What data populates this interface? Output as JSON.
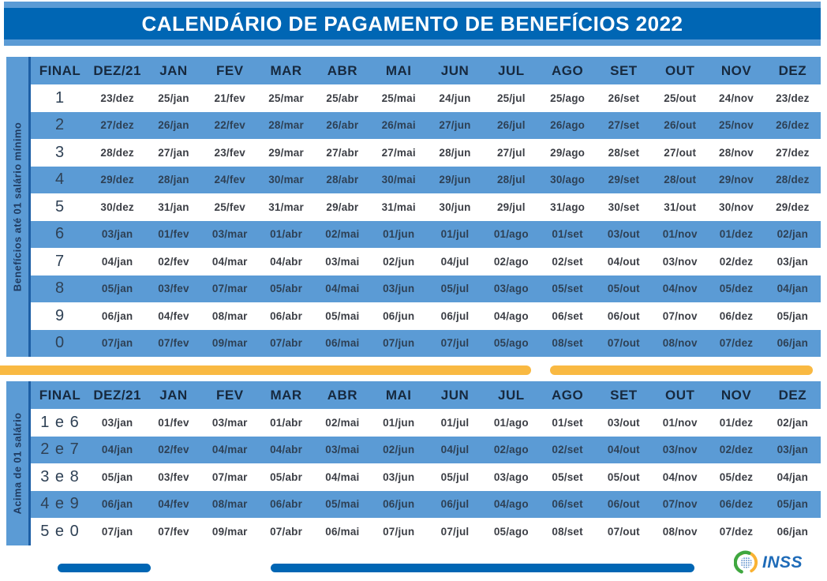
{
  "title": "CALENDÁRIO DE PAGAMENTO DE BENEFÍCIOS 2022",
  "colors": {
    "dark_blue": "#0066B4",
    "light_blue": "#5B9BD5",
    "yellow": "#F9B942",
    "header_text": "#17293E",
    "logo_blue": "#1E6BB8",
    "logo_green": "#3FA73F",
    "logo_yellow": "#F9B233"
  },
  "table1": {
    "side_label": "Benefícios até 01 salário mínimo",
    "columns": [
      "FINAL",
      "DEZ/21",
      "JAN",
      "FEV",
      "MAR",
      "ABR",
      "MAI",
      "JUN",
      "JUL",
      "AGO",
      "SET",
      "OUT",
      "NOV",
      "DEZ"
    ],
    "rows": [
      {
        "final": "1",
        "dates": [
          "23/dez",
          "25/jan",
          "21/fev",
          "25/mar",
          "25/abr",
          "25/mai",
          "24/jun",
          "25/jul",
          "25/ago",
          "26/set",
          "25/out",
          "24/nov",
          "23/dez"
        ]
      },
      {
        "final": "2",
        "dates": [
          "27/dez",
          "26/jan",
          "22/fev",
          "28/mar",
          "26/abr",
          "26/mai",
          "27/jun",
          "26/jul",
          "26/ago",
          "27/set",
          "26/out",
          "25/nov",
          "26/dez"
        ]
      },
      {
        "final": "3",
        "dates": [
          "28/dez",
          "27/jan",
          "23/fev",
          "29/mar",
          "27/abr",
          "27/mai",
          "28/jun",
          "27/jul",
          "29/ago",
          "28/set",
          "27/out",
          "28/nov",
          "27/dez"
        ]
      },
      {
        "final": "4",
        "dates": [
          "29/dez",
          "28/jan",
          "24/fev",
          "30/mar",
          "28/abr",
          "30/mai",
          "29/jun",
          "28/jul",
          "30/ago",
          "29/set",
          "28/out",
          "29/nov",
          "28/dez"
        ]
      },
      {
        "final": "5",
        "dates": [
          "30/dez",
          "31/jan",
          "25/fev",
          "31/mar",
          "29/abr",
          "31/mai",
          "30/jun",
          "29/jul",
          "31/ago",
          "30/set",
          "31/out",
          "30/nov",
          "29/dez"
        ]
      },
      {
        "final": "6",
        "dates": [
          "03/jan",
          "01/fev",
          "03/mar",
          "01/abr",
          "02/mai",
          "01/jun",
          "01/jul",
          "01/ago",
          "01/set",
          "03/out",
          "01/nov",
          "01/dez",
          "02/jan"
        ]
      },
      {
        "final": "7",
        "dates": [
          "04/jan",
          "02/fev",
          "04/mar",
          "04/abr",
          "03/mai",
          "02/jun",
          "04/jul",
          "02/ago",
          "02/set",
          "04/out",
          "03/nov",
          "02/dez",
          "03/jan"
        ]
      },
      {
        "final": "8",
        "dates": [
          "05/jan",
          "03/fev",
          "07/mar",
          "05/abr",
          "04/mai",
          "03/jun",
          "05/jul",
          "03/ago",
          "05/set",
          "05/out",
          "04/nov",
          "05/dez",
          "04/jan"
        ]
      },
      {
        "final": "9",
        "dates": [
          "06/jan",
          "04/fev",
          "08/mar",
          "06/abr",
          "05/mai",
          "06/jun",
          "06/jul",
          "04/ago",
          "06/set",
          "06/out",
          "07/nov",
          "06/dez",
          "05/jan"
        ]
      },
      {
        "final": "0",
        "dates": [
          "07/jan",
          "07/fev",
          "09/mar",
          "07/abr",
          "06/mai",
          "07/jun",
          "07/jul",
          "05/ago",
          "08/set",
          "07/out",
          "08/nov",
          "07/dez",
          "06/jan"
        ]
      }
    ]
  },
  "table2": {
    "side_label": "Acima de 01 salário",
    "columns": [
      "FINAL",
      "DEZ/21",
      "JAN",
      "FEV",
      "MAR",
      "ABR",
      "MAI",
      "JUN",
      "JUL",
      "AGO",
      "SET",
      "OUT",
      "NOV",
      "DEZ"
    ],
    "rows": [
      {
        "final": "1 e 6",
        "dates": [
          "03/jan",
          "01/fev",
          "03/mar",
          "01/abr",
          "02/mai",
          "01/jun",
          "01/jul",
          "01/ago",
          "01/set",
          "03/out",
          "01/nov",
          "01/dez",
          "02/jan"
        ]
      },
      {
        "final": "2 e 7",
        "dates": [
          "04/jan",
          "02/fev",
          "04/mar",
          "04/abr",
          "03/mai",
          "02/jun",
          "04/jul",
          "02/ago",
          "02/set",
          "04/out",
          "03/nov",
          "02/dez",
          "03/jan"
        ]
      },
      {
        "final": "3 e 8",
        "dates": [
          "05/jan",
          "03/fev",
          "07/mar",
          "05/abr",
          "04/mai",
          "03/jun",
          "05/jul",
          "03/ago",
          "05/set",
          "05/out",
          "04/nov",
          "05/dez",
          "04/jan"
        ]
      },
      {
        "final": "4 e 9",
        "dates": [
          "06/jan",
          "04/fev",
          "08/mar",
          "06/abr",
          "05/mai",
          "06/jun",
          "06/jul",
          "04/ago",
          "06/set",
          "06/out",
          "07/nov",
          "06/dez",
          "05/jan"
        ]
      },
      {
        "final": "5 e 0",
        "dates": [
          "07/jan",
          "07/fev",
          "09/mar",
          "07/abr",
          "06/mai",
          "07/jun",
          "07/jul",
          "05/ago",
          "08/set",
          "07/out",
          "08/nov",
          "07/dez",
          "06/jan"
        ]
      }
    ]
  },
  "footer": {
    "logo_text": "INSS"
  }
}
